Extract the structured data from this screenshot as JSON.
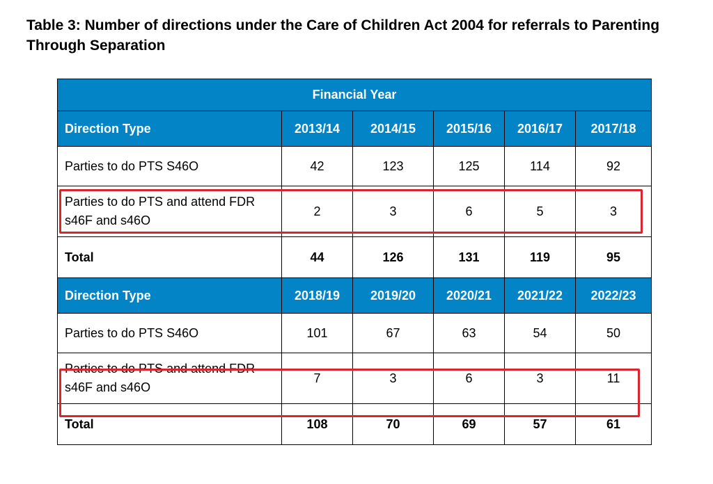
{
  "title": "Table 3: Number of directions under the Care of Children Act 2004 for referrals to Parenting Through Separation",
  "table": {
    "financial_year_label": "Financial Year",
    "blocks": [
      {
        "header": {
          "label": "Direction Type",
          "years": [
            "2013/14",
            "2014/15",
            "2015/16",
            "2016/17",
            "2017/18"
          ]
        },
        "rows": [
          {
            "label": "Parties to do PTS S46O",
            "values": [
              "42",
              "123",
              "125",
              "114",
              "92"
            ]
          },
          {
            "label": "Parties to do PTS and attend FDR s46F and s46O",
            "values": [
              "2",
              "3",
              "6",
              "5",
              "3"
            ],
            "highlighted": true
          }
        ],
        "total": {
          "label": "Total",
          "values": [
            "44",
            "126",
            "131",
            "119",
            "95"
          ]
        }
      },
      {
        "header": {
          "label": "Direction Type",
          "years": [
            "2018/19",
            "2019/20",
            "2020/21",
            "2021/22",
            "2022/23"
          ]
        },
        "rows": [
          {
            "label": "Parties to do PTS S46O",
            "values": [
              "101",
              "67",
              "63",
              "54",
              "50"
            ]
          },
          {
            "label": "Parties to do PTS and attend FDR s46F and s46O",
            "values": [
              "7",
              "3",
              "6",
              "3",
              "11"
            ],
            "highlighted": true
          }
        ],
        "total": {
          "label": "Total",
          "values": [
            "108",
            "70",
            "69",
            "57",
            "61"
          ]
        }
      }
    ]
  },
  "colors": {
    "header_bg": "#0284c7",
    "header_text": "#ffffff",
    "highlight_border": "#d9262e"
  }
}
